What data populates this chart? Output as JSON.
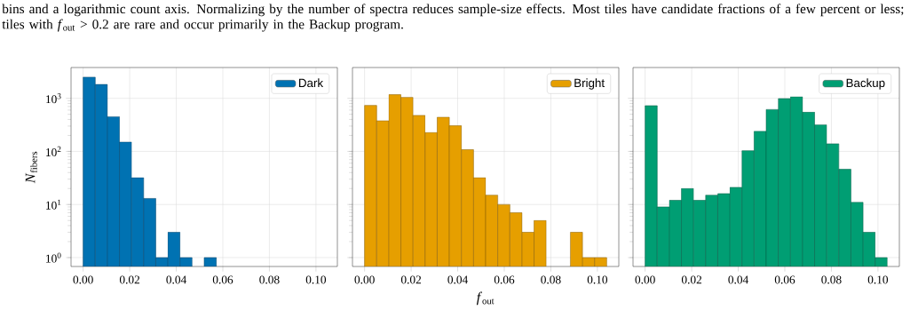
{
  "chart_data": [
    {
      "type": "histogram",
      "annotations": [
        "bins and a logarithmic count axis. Normalizing by the number of spectra reduces sample-size effects. Most tiles have candidate fractions of a few percent or less; tiles with *f*$_{out}$ > 0.2 are rare and occur primarily in the Backup program."
      ],
      "ylabel": "*N*$_{fibers}$",
      "bins": [
        0,
        0.0052,
        0.0104,
        0.0156,
        0.0208,
        0.026,
        0.0312,
        0.0364,
        0.0416,
        0.0468,
        0.052,
        0.0572,
        0.0624,
        0.0676,
        0.0728,
        0.078,
        0.0832,
        0.0884,
        0.0936,
        0.0988,
        0.104
      ],
      "series": [
        {
          "name": "Dark",
          "color": "#0072b2",
          "values": [
            2500,
            1820,
            450,
            150,
            32,
            13,
            1,
            3,
            1,
            null,
            1,
            null,
            null,
            null,
            null,
            null,
            null,
            null,
            null,
            null
          ]
        }
      ],
      "xlim": [
        -0.0052,
        0.1092
      ],
      "ylim": [
        0.68,
        3800
      ],
      "log": "y",
      "grid": true,
      "legend": "top right",
      "xticks": [
        {
          "value": 0,
          "label": "0.00"
        },
        {
          "value": 0.02,
          "label": "0.02"
        },
        {
          "value": 0.04,
          "label": "0.04"
        },
        {
          "value": 0.06,
          "label": "0.06"
        },
        {
          "value": 0.08,
          "label": "0.08"
        },
        {
          "value": 0.1,
          "label": "0.10"
        }
      ],
      "yticks": [
        {
          "value": 1,
          "label": "10$^{0}$"
        },
        {
          "value": 10,
          "label": "10$^{1}$"
        },
        {
          "value": 100,
          "label": "10$^{2}$"
        },
        {
          "value": 1000,
          "label": "10$^{3}$"
        }
      ]
    },
    {
      "type": "histogram",
      "xlabel": "*f*$_{out}$",
      "bins": [
        0,
        0.0052,
        0.0104,
        0.0156,
        0.0208,
        0.026,
        0.0312,
        0.0364,
        0.0416,
        0.0468,
        0.052,
        0.0572,
        0.0624,
        0.0676,
        0.0728,
        0.078,
        0.0832,
        0.0884,
        0.0936,
        0.0988,
        0.104
      ],
      "series": [
        {
          "name": "Bright",
          "color": "#e69f00",
          "values": [
            735,
            378,
            1170,
            1040,
            476,
            227,
            441,
            304,
            108,
            32,
            15,
            10,
            7,
            3,
            5,
            null,
            null,
            3,
            1,
            1
          ]
        }
      ],
      "xlim": [
        -0.0052,
        0.1092
      ],
      "ylim": [
        0.68,
        3800
      ],
      "log": "y",
      "grid": true,
      "legend": "top right",
      "tick_labels": "x",
      "xticks": [
        {
          "value": 0,
          "label": "0.00"
        },
        {
          "value": 0.02,
          "label": "0.02"
        },
        {
          "value": 0.04,
          "label": "0.04"
        },
        {
          "value": 0.06,
          "label": "0.06"
        },
        {
          "value": 0.08,
          "label": "0.08"
        },
        {
          "value": 0.1,
          "label": "0.10"
        }
      ],
      "yticks": [
        {
          "value": 1,
          "label": null
        },
        {
          "value": 10,
          "label": null
        },
        {
          "value": 100,
          "label": null
        },
        {
          "value": 1000,
          "label": null
        }
      ]
    },
    {
      "type": "histogram",
      "bins": [
        0,
        0.0052,
        0.0104,
        0.0156,
        0.0208,
        0.026,
        0.0312,
        0.0364,
        0.0416,
        0.0468,
        0.052,
        0.0572,
        0.0624,
        0.0676,
        0.0728,
        0.078,
        0.0832,
        0.0884,
        0.0936,
        0.0988,
        0.104
      ],
      "series": [
        {
          "name": "Backup",
          "color": "#009e73",
          "values": [
            726,
            9,
            12,
            20,
            12,
            15,
            16,
            21,
            103,
            239,
            615,
            986,
            1070,
            548,
            316,
            139,
            46,
            11,
            3,
            1
          ]
        }
      ],
      "xlim": [
        -0.0052,
        0.1092
      ],
      "ylim": [
        0.68,
        3800
      ],
      "log": "y",
      "grid": true,
      "legend": "top right",
      "tick_labels": "x",
      "xticks": [
        {
          "value": 0,
          "label": "0.00"
        },
        {
          "value": 0.02,
          "label": "0.02"
        },
        {
          "value": 0.04,
          "label": "0.04"
        },
        {
          "value": 0.06,
          "label": "0.06"
        },
        {
          "value": 0.08,
          "label": "0.08"
        },
        {
          "value": 0.1,
          "label": "0.10"
        }
      ],
      "yticks": [
        {
          "value": 1,
          "label": null
        },
        {
          "value": 10,
          "label": null
        },
        {
          "value": 100,
          "label": null
        },
        {
          "value": 1000,
          "label": null
        }
      ]
    }
  ]
}
